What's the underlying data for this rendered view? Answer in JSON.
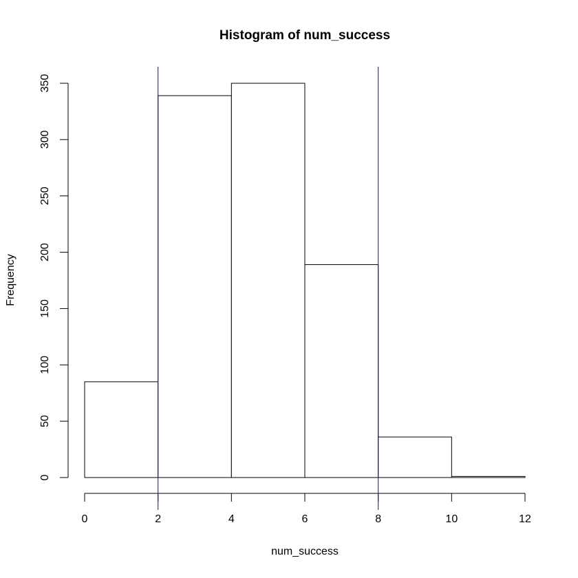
{
  "chart_data": {
    "type": "histogram",
    "title": "Histogram of num_success",
    "x_label": "num_success",
    "y_label": "Frequency",
    "bins": [
      0,
      2,
      4,
      6,
      8,
      10,
      12
    ],
    "values": [
      85,
      339,
      350,
      189,
      36,
      1
    ],
    "color": "#ffffff",
    "edge_color": "#000000",
    "xlim": [
      0,
      12
    ],
    "xticks": [
      0,
      2,
      4,
      6,
      8,
      10,
      12
    ],
    "ylim": [
      0,
      350
    ],
    "yticks": [
      0,
      50,
      100,
      150,
      200,
      250,
      300,
      350
    ],
    "vlines": [
      2,
      8
    ],
    "vline_color": "#0000ff"
  }
}
